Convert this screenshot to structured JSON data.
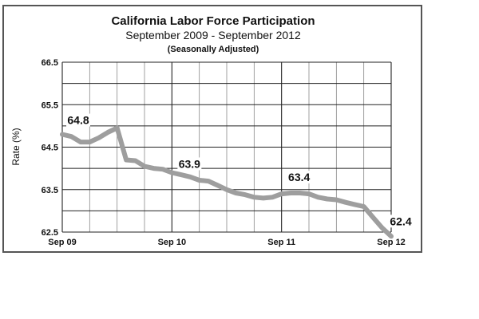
{
  "chart_data": {
    "type": "line",
    "title": "California Labor Force Participation",
    "subtitle": "September 2009 - September 2012",
    "note": "(Seasonally Adjusted)",
    "xlabel": "",
    "ylabel": "Rate (%)",
    "ylim": [
      62.5,
      66.5
    ],
    "xlim": [
      0,
      36
    ],
    "y_ticks": [
      "66.5",
      "65.5",
      "64.5",
      "63.5",
      "62.5"
    ],
    "x_ticks": [
      {
        "value": 0,
        "label": "Sep 09"
      },
      {
        "value": 12,
        "label": "Sep 10"
      },
      {
        "value": 24,
        "label": "Sep 11"
      },
      {
        "value": 36,
        "label": "Sep 12"
      }
    ],
    "grid": true,
    "series": [
      {
        "color": "#9e9e9e",
        "points": [
          [
            0,
            64.8
          ],
          [
            1,
            64.75
          ],
          [
            2,
            64.62
          ],
          [
            3,
            64.62
          ],
          [
            4,
            64.72
          ],
          [
            5,
            64.85
          ],
          [
            6,
            64.95
          ],
          [
            7,
            64.2
          ],
          [
            8,
            64.18
          ],
          [
            9,
            64.05
          ],
          [
            10,
            64.0
          ],
          [
            11,
            63.98
          ],
          [
            12,
            63.9
          ],
          [
            13,
            63.85
          ],
          [
            14,
            63.8
          ],
          [
            15,
            63.72
          ],
          [
            16,
            63.7
          ],
          [
            17,
            63.6
          ],
          [
            18,
            63.5
          ],
          [
            19,
            63.42
          ],
          [
            20,
            63.38
          ],
          [
            21,
            63.32
          ],
          [
            22,
            63.3
          ],
          [
            23,
            63.32
          ],
          [
            24,
            63.4
          ],
          [
            25,
            63.42
          ],
          [
            26,
            63.42
          ],
          [
            27,
            63.4
          ],
          [
            28,
            63.32
          ],
          [
            29,
            63.28
          ],
          [
            30,
            63.26
          ],
          [
            31,
            63.2
          ],
          [
            32,
            63.15
          ],
          [
            33,
            63.1
          ],
          [
            34,
            62.85
          ],
          [
            35,
            62.6
          ],
          [
            36,
            62.4
          ]
        ]
      }
    ],
    "data_labels": [
      {
        "x": 0,
        "y": 64.8,
        "text": "64.8"
      },
      {
        "x": 12,
        "y": 63.9,
        "text": "63.9"
      },
      {
        "x": 24,
        "y": 63.4,
        "text": "63.4"
      },
      {
        "x": 36,
        "y": 62.4,
        "text": "62.4"
      }
    ]
  }
}
